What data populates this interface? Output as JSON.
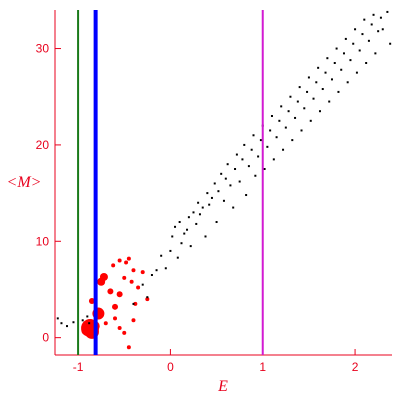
{
  "chart_data": {
    "type": "scatter",
    "xlabel": "E",
    "ylabel": "<M>",
    "xlim": [
      -1.25,
      2.4
    ],
    "ylim": [
      -1.8,
      34
    ],
    "xticks": [
      -1,
      0,
      1,
      2
    ],
    "yticks": [
      0,
      10,
      20,
      30
    ],
    "colors": {
      "axis": "#e8001c",
      "black_points": "#000000",
      "red_points": "#ff0000",
      "line_green": "#1a7a1a",
      "line_blue": "#0000ff",
      "line_magenta": "#d21ad2"
    },
    "vertical_lines": [
      {
        "x": -1.0,
        "color": "#1a7a1a",
        "weight": "thin"
      },
      {
        "x": -0.81,
        "color": "#0000ff",
        "weight": "thick"
      },
      {
        "x": 1.0,
        "color": "#d21ad2",
        "weight": "thin"
      }
    ],
    "series": [
      {
        "marker": "dot",
        "color": "#000000",
        "points": [
          [
            -1.22,
            2.0
          ],
          [
            -1.18,
            1.5
          ],
          [
            -1.12,
            1.2
          ],
          [
            -1.05,
            1.6
          ],
          [
            -0.95,
            1.8
          ],
          [
            -0.9,
            2.2
          ],
          [
            -0.88,
            1.5
          ],
          [
            -0.4,
            3.5
          ],
          [
            -0.3,
            5.5
          ],
          [
            -0.25,
            4.2
          ],
          [
            -0.2,
            6.5
          ],
          [
            -0.15,
            7.0
          ],
          [
            -0.1,
            8.5
          ],
          [
            -0.05,
            7.2
          ],
          [
            0.0,
            9.0
          ],
          [
            0.02,
            10.5
          ],
          [
            0.05,
            11.5
          ],
          [
            0.08,
            8.3
          ],
          [
            0.1,
            12.0
          ],
          [
            0.12,
            9.8
          ],
          [
            0.15,
            10.8
          ],
          [
            0.18,
            11.2
          ],
          [
            0.2,
            12.5
          ],
          [
            0.22,
            9.5
          ],
          [
            0.25,
            13.0
          ],
          [
            0.28,
            11.8
          ],
          [
            0.3,
            14.0
          ],
          [
            0.32,
            12.8
          ],
          [
            0.35,
            13.5
          ],
          [
            0.38,
            10.5
          ],
          [
            0.4,
            15.0
          ],
          [
            0.42,
            13.8
          ],
          [
            0.45,
            14.5
          ],
          [
            0.48,
            16.0
          ],
          [
            0.5,
            12.0
          ],
          [
            0.52,
            15.2
          ],
          [
            0.55,
            17.0
          ],
          [
            0.58,
            14.2
          ],
          [
            0.6,
            16.5
          ],
          [
            0.62,
            18.0
          ],
          [
            0.65,
            15.8
          ],
          [
            0.68,
            13.5
          ],
          [
            0.7,
            17.5
          ],
          [
            0.72,
            19.0
          ],
          [
            0.75,
            16.2
          ],
          [
            0.78,
            18.5
          ],
          [
            0.8,
            20.0
          ],
          [
            0.82,
            14.8
          ],
          [
            0.85,
            17.8
          ],
          [
            0.88,
            19.5
          ],
          [
            0.9,
            21.0
          ],
          [
            0.92,
            16.8
          ],
          [
            0.95,
            18.8
          ],
          [
            0.98,
            20.5
          ],
          [
            1.0,
            22.0
          ],
          [
            1.02,
            17.5
          ],
          [
            1.05,
            19.8
          ],
          [
            1.08,
            21.5
          ],
          [
            1.1,
            23.0
          ],
          [
            1.12,
            18.5
          ],
          [
            1.15,
            20.8
          ],
          [
            1.18,
            22.5
          ],
          [
            1.2,
            24.0
          ],
          [
            1.22,
            19.5
          ],
          [
            1.25,
            21.8
          ],
          [
            1.28,
            23.5
          ],
          [
            1.3,
            25.0
          ],
          [
            1.32,
            20.5
          ],
          [
            1.35,
            22.8
          ],
          [
            1.38,
            24.5
          ],
          [
            1.4,
            26.0
          ],
          [
            1.42,
            21.5
          ],
          [
            1.45,
            23.8
          ],
          [
            1.48,
            25.5
          ],
          [
            1.5,
            27.0
          ],
          [
            1.52,
            22.5
          ],
          [
            1.55,
            24.8
          ],
          [
            1.58,
            26.5
          ],
          [
            1.6,
            28.0
          ],
          [
            1.62,
            23.5
          ],
          [
            1.65,
            25.8
          ],
          [
            1.68,
            27.5
          ],
          [
            1.7,
            29.0
          ],
          [
            1.72,
            24.5
          ],
          [
            1.75,
            26.8
          ],
          [
            1.78,
            28.5
          ],
          [
            1.8,
            30.0
          ],
          [
            1.82,
            25.5
          ],
          [
            1.85,
            27.8
          ],
          [
            1.88,
            29.5
          ],
          [
            1.9,
            31.0
          ],
          [
            1.92,
            26.5
          ],
          [
            1.95,
            28.8
          ],
          [
            1.98,
            30.5
          ],
          [
            2.0,
            32.0
          ],
          [
            2.02,
            27.5
          ],
          [
            2.05,
            29.8
          ],
          [
            2.08,
            31.5
          ],
          [
            2.1,
            33.0
          ],
          [
            2.12,
            28.5
          ],
          [
            2.15,
            30.8
          ],
          [
            2.18,
            32.5
          ],
          [
            2.2,
            33.5
          ],
          [
            2.22,
            29.5
          ],
          [
            2.25,
            31.8
          ],
          [
            2.28,
            33.2
          ],
          [
            2.3,
            32.0
          ],
          [
            2.35,
            33.8
          ],
          [
            2.38,
            30.5
          ]
        ]
      },
      {
        "marker": "red",
        "color": "#ff0000",
        "points": [
          [
            -0.9,
            0.8,
            6
          ],
          [
            -0.87,
            1.0,
            9
          ],
          [
            -0.85,
            0.6,
            7
          ],
          [
            -0.82,
            1.2,
            5
          ],
          [
            -0.78,
            2.5,
            6
          ],
          [
            -0.75,
            5.8,
            4
          ],
          [
            -0.72,
            6.3,
            4
          ],
          [
            -0.85,
            3.8,
            3
          ],
          [
            -0.65,
            4.8,
            3
          ],
          [
            -0.6,
            3.2,
            3
          ],
          [
            -0.55,
            4.5,
            3
          ],
          [
            -0.62,
            7.5,
            2
          ],
          [
            -0.5,
            6.2,
            2
          ],
          [
            -0.45,
            8.2,
            2
          ],
          [
            -0.4,
            7.0,
            2
          ],
          [
            -0.35,
            5.2,
            2
          ],
          [
            -0.3,
            6.8,
            2
          ],
          [
            -0.25,
            4.0,
            2
          ],
          [
            -0.7,
            1.5,
            2
          ],
          [
            -0.6,
            2.0,
            2
          ],
          [
            -0.55,
            1.0,
            2
          ],
          [
            -0.5,
            0.5,
            2
          ],
          [
            -0.45,
            -1.0,
            2
          ],
          [
            -0.4,
            1.8,
            2
          ],
          [
            -0.55,
            8.0,
            2
          ],
          [
            -0.48,
            7.8,
            2
          ],
          [
            -0.42,
            5.8,
            2
          ],
          [
            -0.38,
            3.5,
            2
          ]
        ]
      }
    ]
  }
}
